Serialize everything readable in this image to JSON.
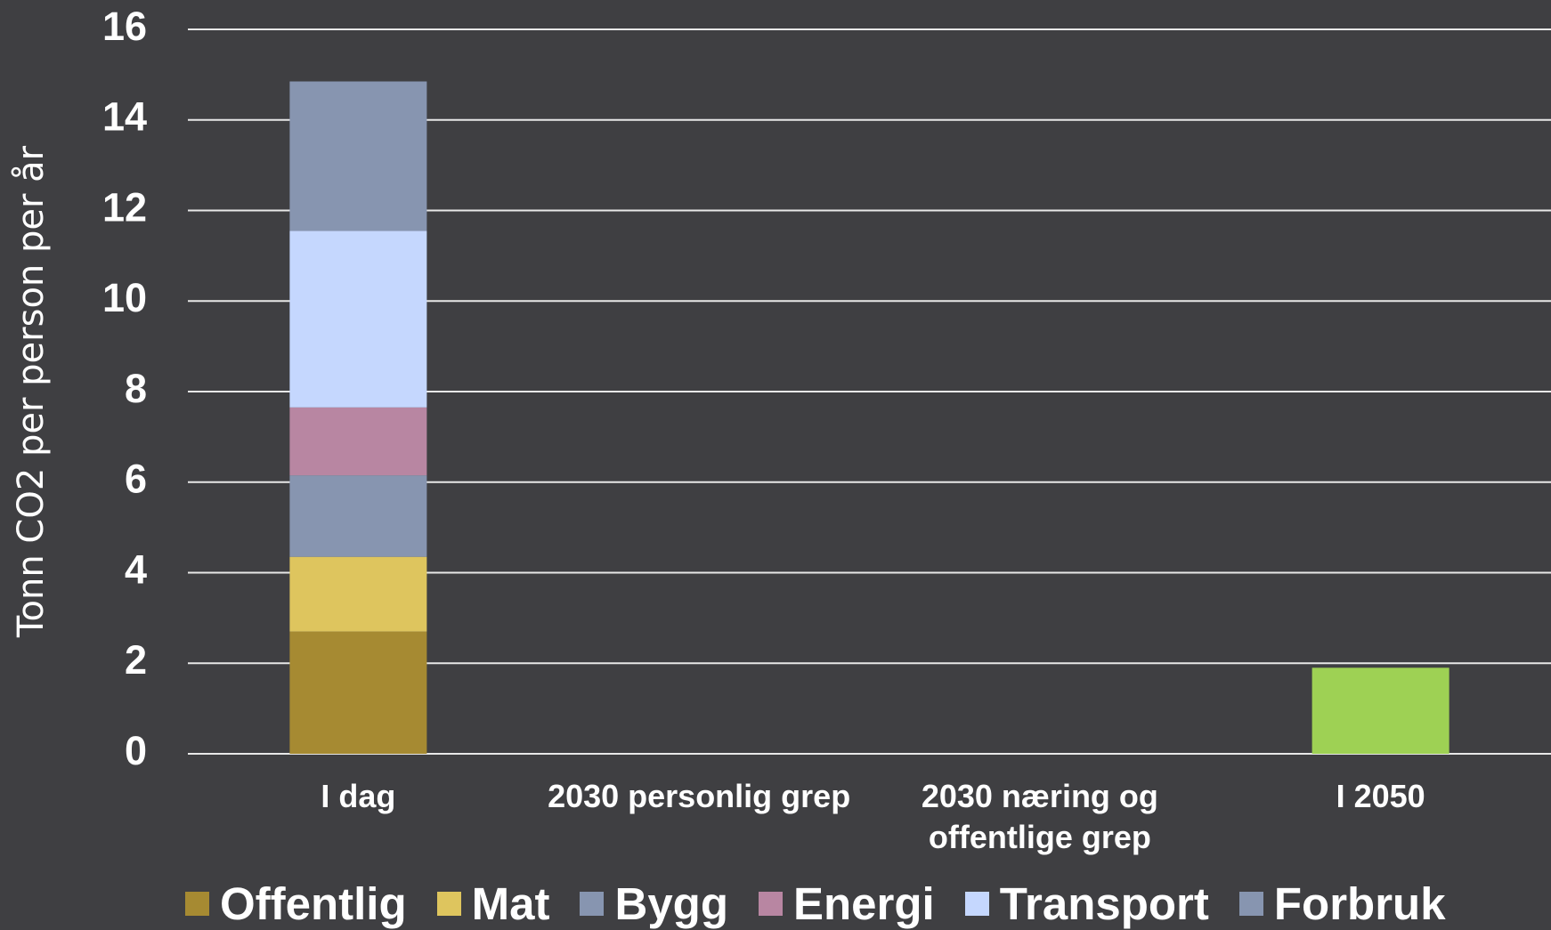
{
  "chart_data": {
    "type": "stacked_bar",
    "y_label": "Tonn CO2 per person per år",
    "categories": [
      "I dag",
      "2030 personlig grep",
      "2030 næring og offentlige grep",
      "I 2050"
    ],
    "series": [
      {
        "name": "Offentlig",
        "color": "#a68a32",
        "values": [
          2.7,
          null,
          null,
          null
        ]
      },
      {
        "name": "Mat",
        "color": "#dec55e",
        "values": [
          1.65,
          null,
          null,
          null
        ]
      },
      {
        "name": "Bygg",
        "color": "#8795b0",
        "values": [
          1.8,
          null,
          null,
          null
        ]
      },
      {
        "name": "Energi",
        "color": "#b886a2",
        "values": [
          1.5,
          null,
          null,
          null
        ]
      },
      {
        "name": "Transport",
        "color": "#c5d7fe",
        "values": [
          3.9,
          null,
          null,
          null
        ]
      },
      {
        "name": "Forbruk",
        "color": "#8795b0",
        "values": [
          3.3,
          null,
          null,
          null
        ]
      },
      {
        "color": "#9ed154",
        "values": [
          null,
          null,
          null,
          1.9
        ]
      }
    ],
    "ylim": [
      0,
      16
    ],
    "yticks": [
      0,
      2,
      4,
      6,
      8,
      10,
      12,
      14,
      16
    ],
    "grid": true,
    "legend": "bottom"
  }
}
